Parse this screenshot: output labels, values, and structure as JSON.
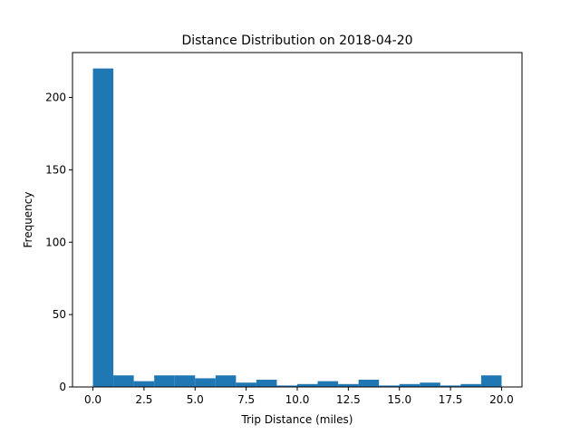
{
  "chart_data": {
    "type": "bar",
    "title": "Distance Distribution on 2018-04-20",
    "xlabel": "Trip Distance (miles)",
    "ylabel": "Frequency",
    "bin_edges": [
      0.0,
      1.0,
      2.0,
      3.0,
      4.0,
      5.0,
      6.0,
      7.0,
      8.0,
      9.0,
      10.0,
      11.0,
      12.0,
      13.0,
      14.0,
      15.0,
      16.0,
      17.0,
      18.0,
      19.0,
      20.0
    ],
    "values": [
      220,
      8,
      4,
      8,
      8,
      6,
      8,
      3,
      5,
      1,
      2,
      4,
      2,
      5,
      1,
      2,
      3,
      1,
      2,
      8
    ],
    "xlim": [
      -1.0,
      21.0
    ],
    "ylim": [
      0,
      231
    ],
    "xticks": [
      0.0,
      2.5,
      5.0,
      7.5,
      10.0,
      12.5,
      15.0,
      17.5,
      20.0
    ],
    "xtick_labels": [
      "0.0",
      "2.5",
      "5.0",
      "7.5",
      "10.0",
      "12.5",
      "15.0",
      "17.5",
      "20.0"
    ],
    "yticks": [
      0,
      50,
      100,
      150,
      200
    ],
    "ytick_labels": [
      "0",
      "50",
      "100",
      "150",
      "200"
    ],
    "bar_color": "#1f77b4",
    "grid": false,
    "legend": "none"
  }
}
